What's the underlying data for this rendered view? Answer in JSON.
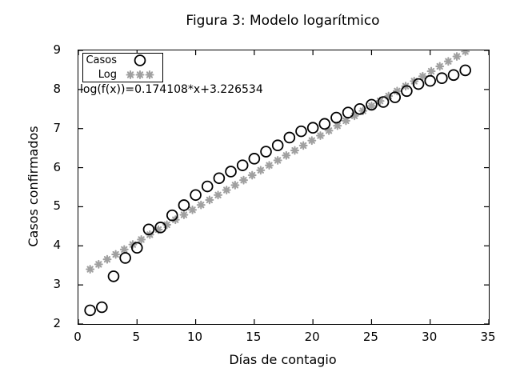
{
  "title": "Figura 3: Modelo logarítmico",
  "colors": {
    "foreground": "#000000",
    "background": "#ffffff",
    "data_marker": "#000000",
    "fit_marker": "#a0a0a0"
  },
  "chart_data": {
    "type": "scatter",
    "title": "Figura 3: Modelo logarítmico",
    "xlabel": "Días de contagio",
    "ylabel": "Casos confirmados",
    "xlim": [
      0,
      35
    ],
    "ylim": [
      2,
      9
    ],
    "xticks": [
      0,
      5,
      10,
      15,
      20,
      25,
      30,
      35
    ],
    "yticks": [
      2,
      3,
      4,
      5,
      6,
      7,
      8,
      9
    ],
    "grid": false,
    "legend_position": "top-left",
    "annotation": {
      "text": "log(f(x))=0.174108*x+3.226534",
      "x": 0.2,
      "y": 8
    },
    "series": [
      {
        "name": "Casos",
        "marker": "open-circle",
        "color": "#000000",
        "x": [
          1,
          2,
          3,
          4,
          5,
          6,
          7,
          8,
          9,
          10,
          11,
          12,
          13,
          14,
          15,
          16,
          17,
          18,
          19,
          20,
          21,
          22,
          23,
          24,
          25,
          26,
          27,
          28,
          29,
          30,
          31,
          32,
          33
        ],
        "y": [
          2.35,
          2.43,
          3.22,
          3.69,
          3.95,
          4.42,
          4.47,
          4.78,
          5.04,
          5.3,
          5.52,
          5.73,
          5.9,
          6.06,
          6.23,
          6.41,
          6.57,
          6.77,
          6.93,
          7.02,
          7.12,
          7.28,
          7.41,
          7.5,
          7.61,
          7.68,
          7.8,
          7.96,
          8.14,
          8.22,
          8.29,
          8.37,
          8.49
        ]
      },
      {
        "name": "Log",
        "marker": "asterisk",
        "color": "#a0a0a0",
        "fit": {
          "slope": 0.174108,
          "intercept": 3.226534,
          "x_start": 1,
          "x_end": 33,
          "samples": 45
        }
      }
    ]
  }
}
